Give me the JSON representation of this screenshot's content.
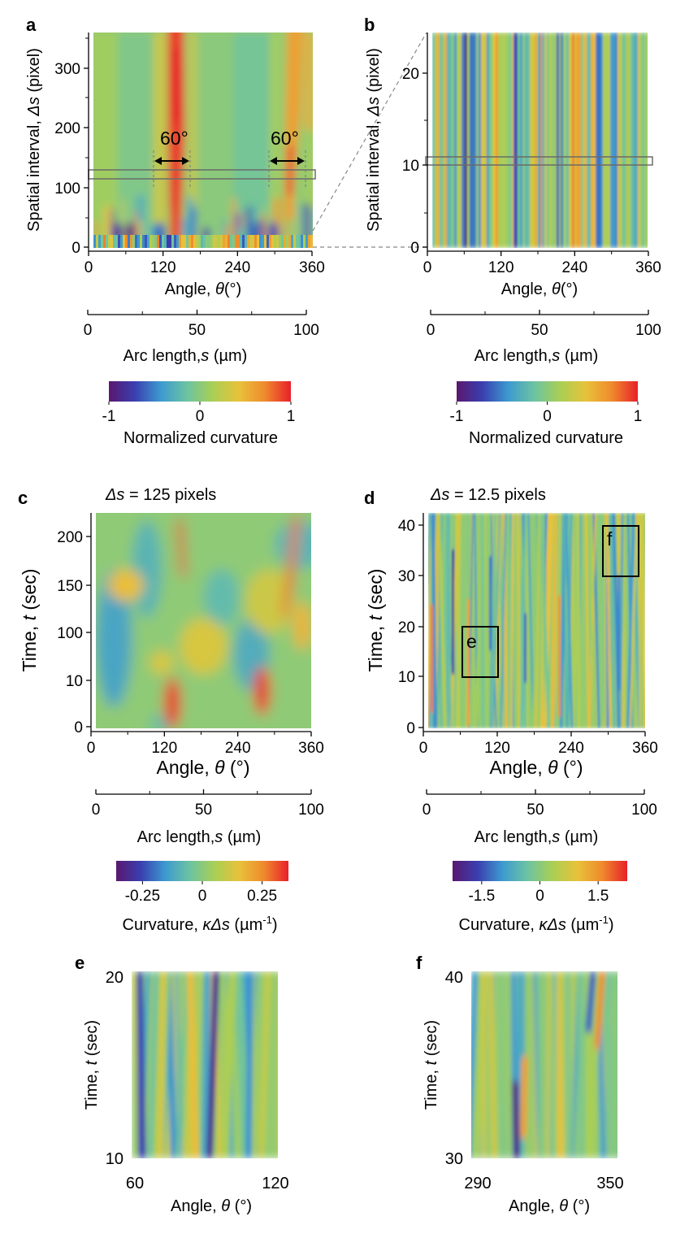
{
  "figure": {
    "panel_labels": {
      "a": "a",
      "b": "b",
      "c": "c",
      "d": "d",
      "e": "e",
      "f": "f"
    }
  },
  "colors": {
    "colormap_stops": [
      "#5a1770",
      "#3a3fb0",
      "#3d9ad0",
      "#6cc3a2",
      "#a9cf55",
      "#e8c23a",
      "#ef8a2c",
      "#e8202a"
    ]
  },
  "panels": {
    "a": {
      "ylabel_pre": "Spatial interval, ",
      "ylabel_sym": "Δs",
      "ylabel_post": " (pixel)",
      "xlabel_pre": "Angle,  ",
      "xlabel_sym": "θ",
      "xlabel_post": "(°)",
      "x_ticks": [
        "0",
        "120",
        "240",
        "360"
      ],
      "y_ticks": [
        "0",
        "100",
        "200",
        "300"
      ],
      "arc_ticks": [
        "0",
        "50",
        "100"
      ],
      "arc_label_pre": "Arc length,",
      "arc_label_sym": "s",
      "arc_label_post": " (µm)",
      "annotation_left": "60°",
      "annotation_right": "60°",
      "colorbar_ticks": [
        "-1",
        "0",
        "1"
      ],
      "colorbar_label": "Normalized curvature"
    },
    "b": {
      "ylabel_pre": "Spatial interval, ",
      "ylabel_sym": "Δs",
      "ylabel_post": " (pixel)",
      "xlabel_pre": "Angle,  ",
      "xlabel_sym": "θ",
      "xlabel_post": "(°)",
      "x_ticks": [
        "0",
        "120",
        "240",
        "360"
      ],
      "y_ticks": [
        "0",
        "10",
        "20"
      ],
      "arc_ticks": [
        "0",
        "50",
        "100"
      ],
      "arc_label_pre": "Arc length,",
      "arc_label_sym": "s",
      "arc_label_post": " (µm)",
      "colorbar_ticks": [
        "-1",
        "0",
        "1"
      ],
      "colorbar_label": "Normalized curvature"
    },
    "c": {
      "title_sym": "Δs",
      "title_post": " = 125 pixels",
      "ylabel_pre": "Time, ",
      "ylabel_sym": "t",
      "ylabel_post": " (sec)",
      "xlabel_pre": "Angle, ",
      "xlabel_sym": "θ",
      "xlabel_post": " (°)",
      "x_ticks": [
        "0",
        "120",
        "240",
        "360"
      ],
      "y_ticks": [
        "0",
        "10",
        "100",
        "150",
        "200"
      ],
      "arc_ticks": [
        "0",
        "50",
        "100"
      ],
      "arc_label_pre": "Arc length,",
      "arc_label_sym": "s",
      "arc_label_post": " (µm)",
      "colorbar_ticks": [
        "-0.25",
        "0",
        "0.25"
      ],
      "colorbar_label_pre": "Curvature, ",
      "colorbar_label_sym": "κΔs",
      "colorbar_label_post": " (µm",
      "colorbar_label_sup": "-1",
      "colorbar_label_end": ")"
    },
    "d": {
      "title_sym": "Δs",
      "title_post": " = 12.5 pixels",
      "ylabel_pre": "Time, ",
      "ylabel_sym": "t",
      "ylabel_post": " (sec)",
      "xlabel_pre": "Angle, ",
      "xlabel_sym": "θ",
      "xlabel_post": " (°)",
      "x_ticks": [
        "0",
        "120",
        "240",
        "360"
      ],
      "y_ticks": [
        "0",
        "10",
        "20",
        "30",
        "40"
      ],
      "arc_ticks": [
        "0",
        "50",
        "100"
      ],
      "arc_label_pre": "Arc length,",
      "arc_label_sym": "s",
      "arc_label_post": " (µm)",
      "box_e_label": "e",
      "box_f_label": "f",
      "colorbar_ticks": [
        "-1.5",
        "0",
        "1.5"
      ],
      "colorbar_label_pre": "Curvature, ",
      "colorbar_label_sym": "κΔs",
      "colorbar_label_post": " (µm",
      "colorbar_label_sup": "-1",
      "colorbar_label_end": ")"
    },
    "e": {
      "ylabel_pre": "Time, ",
      "ylabel_sym": "t",
      "ylabel_post": " (sec)",
      "xlabel_pre": "Angle, ",
      "xlabel_sym": "θ",
      "xlabel_post": " (°)",
      "x_ticks": [
        "60",
        "120"
      ],
      "y_ticks": [
        "10",
        "20"
      ]
    },
    "f": {
      "ylabel_pre": "Time, ",
      "ylabel_sym": "t",
      "ylabel_post": " (sec)",
      "xlabel_pre": "Angle, ",
      "xlabel_sym": "θ",
      "xlabel_post": " (°)",
      "x_ticks": [
        "290",
        "350"
      ],
      "y_ticks": [
        "30",
        "40"
      ]
    }
  },
  "chart_data": [
    {
      "panel": "a",
      "type": "heatmap",
      "x_range": [
        0,
        360
      ],
      "y_range": [
        0,
        360
      ],
      "x_ticks": [
        0,
        120,
        240,
        360
      ],
      "y_ticks": [
        0,
        100,
        200,
        300
      ],
      "secondary_x_range": [
        0,
        100
      ],
      "secondary_x_ticks": [
        0,
        50,
        100
      ],
      "color_range": [
        -1,
        1
      ],
      "highlight_rows": {
        "y_from": 115,
        "y_to": 130
      },
      "annotations": [
        {
          "text": "60°",
          "x_from": 100,
          "x_to": 160
        },
        {
          "text": "60°",
          "x_from": 295,
          "x_to": 355
        }
      ],
      "features": [
        {
          "kind": "positive_band",
          "theta_center": 135,
          "y_from": 0,
          "y_to": 360,
          "strength": 1.0
        },
        {
          "kind": "positive_band",
          "theta_center": 325,
          "y_from": 0,
          "y_to": 360,
          "strength": 0.7
        }
      ]
    },
    {
      "panel": "b",
      "type": "heatmap",
      "x_range": [
        0,
        360
      ],
      "y_range": [
        0,
        25
      ],
      "x_ticks": [
        0,
        120,
        240,
        360
      ],
      "y_ticks": [
        0,
        10,
        20
      ],
      "secondary_x_range": [
        0,
        100
      ],
      "secondary_x_ticks": [
        0,
        50,
        100
      ],
      "color_range": [
        -1,
        1
      ],
      "highlight_rows": {
        "y_from": 10,
        "y_to": 11
      },
      "features": [
        {
          "kind": "negative_stripe",
          "theta_center": 50
        },
        {
          "kind": "positive_stripe",
          "theta_center": 240
        }
      ]
    },
    {
      "panel": "c",
      "type": "heatmap",
      "x_range": [
        0,
        360
      ],
      "y_ticks": [
        0,
        10,
        100,
        150,
        200
      ],
      "secondary_x_range": [
        0,
        100
      ],
      "secondary_x_ticks": [
        0,
        50,
        100
      ],
      "color_range": [
        -0.35,
        0.35
      ],
      "color_ticks": [
        -0.25,
        0,
        0.25
      ],
      "features": [
        {
          "kind": "positive_blob",
          "theta_center": 120,
          "t_from": 0,
          "t_to": 40
        },
        {
          "kind": "positive_blob",
          "theta_center": 280,
          "t_from": 0,
          "t_to": 60
        },
        {
          "kind": "positive_band",
          "theta_center": 140,
          "t_from": 150,
          "t_to": 220
        },
        {
          "kind": "positive_band",
          "theta_center": 335,
          "t_from": 120,
          "t_to": 220
        }
      ]
    },
    {
      "panel": "d",
      "type": "heatmap",
      "x_range": [
        0,
        360
      ],
      "y_range": [
        0,
        42
      ],
      "x_ticks": [
        0,
        120,
        240,
        360
      ],
      "y_ticks": [
        0,
        10,
        20,
        30,
        40
      ],
      "secondary_x_range": [
        0,
        100
      ],
      "secondary_x_ticks": [
        0,
        50,
        100
      ],
      "color_range": [
        -2.2,
        2.2
      ],
      "color_ticks": [
        -1.5,
        0,
        1.5
      ],
      "boxes": [
        {
          "label": "e",
          "x_from": 60,
          "x_to": 120,
          "t_from": 10,
          "t_to": 20
        },
        {
          "label": "f",
          "x_from": 290,
          "x_to": 350,
          "t_from": 30,
          "t_to": 40
        }
      ]
    },
    {
      "panel": "e",
      "type": "heatmap",
      "x_range": [
        60,
        120
      ],
      "y_range": [
        10,
        20
      ],
      "x_ticks": [
        60,
        120
      ],
      "y_ticks": [
        10,
        20
      ]
    },
    {
      "panel": "f",
      "type": "heatmap",
      "x_range": [
        290,
        350
      ],
      "y_range": [
        30,
        40
      ],
      "x_ticks": [
        290,
        350
      ],
      "y_ticks": [
        30,
        40
      ]
    }
  ]
}
